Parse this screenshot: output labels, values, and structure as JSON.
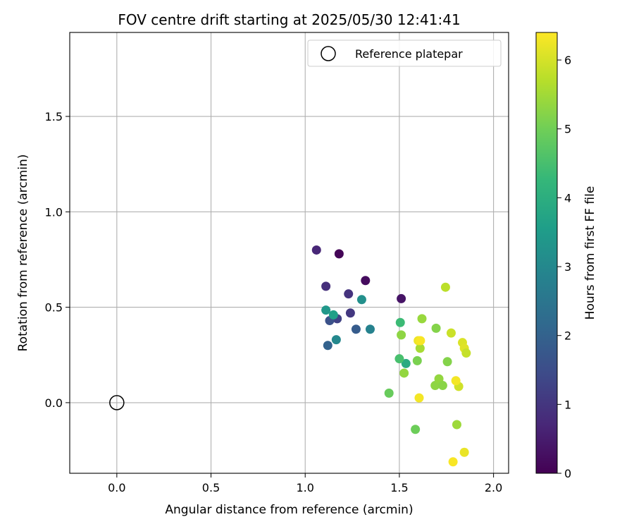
{
  "chart_data": {
    "type": "scatter",
    "title": "FOV centre drift starting at 2025/05/30 12:41:41",
    "xlabel": "Angular distance from reference (arcmin)",
    "ylabel": "Rotation from reference (arcmin)",
    "xlim": [
      -0.25,
      2.08
    ],
    "ylim": [
      -0.37,
      1.94
    ],
    "xticks": [
      0.0,
      0.5,
      1.0,
      1.5,
      2.0
    ],
    "xtick_labels": [
      "0.0",
      "0.5",
      "1.0",
      "1.5",
      "2.0"
    ],
    "yticks": [
      0.0,
      0.5,
      1.0,
      1.5
    ],
    "ytick_labels": [
      "0.0",
      "0.5",
      "1.0",
      "1.5"
    ],
    "grid": true,
    "legend": {
      "position": "top-right",
      "label": "Reference platepar"
    },
    "reference_point": {
      "x": 0.0,
      "y": 0.0
    },
    "colorbar": {
      "label": "Hours from first FF file",
      "range": [
        0,
        6.4
      ],
      "ticks": [
        0,
        1,
        2,
        3,
        4,
        5,
        6
      ],
      "tick_labels": [
        "0",
        "1",
        "2",
        "3",
        "4",
        "5",
        "6"
      ],
      "colormap": "viridis"
    },
    "points": [
      {
        "x": 1.18,
        "y": 0.78,
        "c": 0.05
      },
      {
        "x": 1.32,
        "y": 0.64,
        "c": 0.2
      },
      {
        "x": 1.51,
        "y": 0.545,
        "c": 0.35
      },
      {
        "x": 1.06,
        "y": 0.8,
        "c": 0.7
      },
      {
        "x": 1.11,
        "y": 0.61,
        "c": 0.85
      },
      {
        "x": 1.23,
        "y": 0.57,
        "c": 0.95
      },
      {
        "x": 1.24,
        "y": 0.47,
        "c": 1.05
      },
      {
        "x": 1.17,
        "y": 0.44,
        "c": 1.25
      },
      {
        "x": 1.13,
        "y": 0.43,
        "c": 1.6
      },
      {
        "x": 1.27,
        "y": 0.385,
        "c": 1.85
      },
      {
        "x": 1.12,
        "y": 0.3,
        "c": 2.0
      },
      {
        "x": 1.345,
        "y": 0.385,
        "c": 2.85
      },
      {
        "x": 1.165,
        "y": 0.33,
        "c": 3.0
      },
      {
        "x": 1.3,
        "y": 0.54,
        "c": 3.2
      },
      {
        "x": 1.11,
        "y": 0.485,
        "c": 3.4
      },
      {
        "x": 1.15,
        "y": 0.46,
        "c": 3.6
      },
      {
        "x": 1.535,
        "y": 0.205,
        "c": 3.9
      },
      {
        "x": 1.505,
        "y": 0.42,
        "c": 4.35
      },
      {
        "x": 1.5,
        "y": 0.23,
        "c": 4.5
      },
      {
        "x": 1.445,
        "y": 0.05,
        "c": 4.9
      },
      {
        "x": 1.51,
        "y": 0.355,
        "c": 5.3
      },
      {
        "x": 1.525,
        "y": 0.155,
        "c": 5.35
      },
      {
        "x": 1.585,
        "y": -0.14,
        "c": 4.95
      },
      {
        "x": 1.595,
        "y": 0.22,
        "c": 5.1
      },
      {
        "x": 1.61,
        "y": 0.285,
        "c": 5.55
      },
      {
        "x": 1.62,
        "y": 0.44,
        "c": 5.4
      },
      {
        "x": 1.695,
        "y": 0.39,
        "c": 5.2
      },
      {
        "x": 1.69,
        "y": 0.09,
        "c": 5.3
      },
      {
        "x": 1.71,
        "y": 0.125,
        "c": 5.35
      },
      {
        "x": 1.73,
        "y": 0.09,
        "c": 5.25
      },
      {
        "x": 1.755,
        "y": 0.215,
        "c": 5.2
      },
      {
        "x": 1.745,
        "y": 0.605,
        "c": 5.75
      },
      {
        "x": 1.775,
        "y": 0.365,
        "c": 5.9
      },
      {
        "x": 1.805,
        "y": -0.115,
        "c": 5.45
      },
      {
        "x": 1.815,
        "y": 0.085,
        "c": 5.95
      },
      {
        "x": 1.835,
        "y": 0.315,
        "c": 6.05
      },
      {
        "x": 1.845,
        "y": 0.285,
        "c": 6.1
      },
      {
        "x": 1.855,
        "y": 0.26,
        "c": 5.85
      },
      {
        "x": 1.8,
        "y": 0.115,
        "c": 6.3
      },
      {
        "x": 1.6,
        "y": 0.325,
        "c": 6.25
      },
      {
        "x": 1.612,
        "y": 0.325,
        "c": 6.35
      },
      {
        "x": 1.605,
        "y": 0.025,
        "c": 6.3
      },
      {
        "x": 1.845,
        "y": -0.26,
        "c": 6.2
      },
      {
        "x": 1.785,
        "y": -0.31,
        "c": 6.35
      }
    ]
  }
}
